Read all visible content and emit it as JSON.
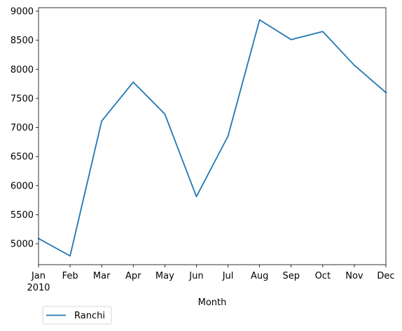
{
  "chart_data": {
    "type": "line",
    "title": "",
    "xlabel": "Month",
    "ylabel": "",
    "categories": [
      "Jan",
      "Feb",
      "Mar",
      "Apr",
      "May",
      "Jun",
      "Jul",
      "Aug",
      "Sep",
      "Oct",
      "Nov",
      "Dec"
    ],
    "year_label": "2010",
    "series": [
      {
        "name": "Ranchi",
        "color": "#1f77b4",
        "values": [
          5090,
          4790,
          7110,
          7780,
          7230,
          5810,
          6850,
          8850,
          8510,
          8650,
          8070,
          7600
        ]
      }
    ],
    "yticks": [
      5000,
      5500,
      6000,
      6500,
      7000,
      7500,
      8000,
      8500,
      9000
    ],
    "ylim": [
      4640,
      9060
    ],
    "grid": false,
    "legend_position": "bottom-left-outside"
  }
}
